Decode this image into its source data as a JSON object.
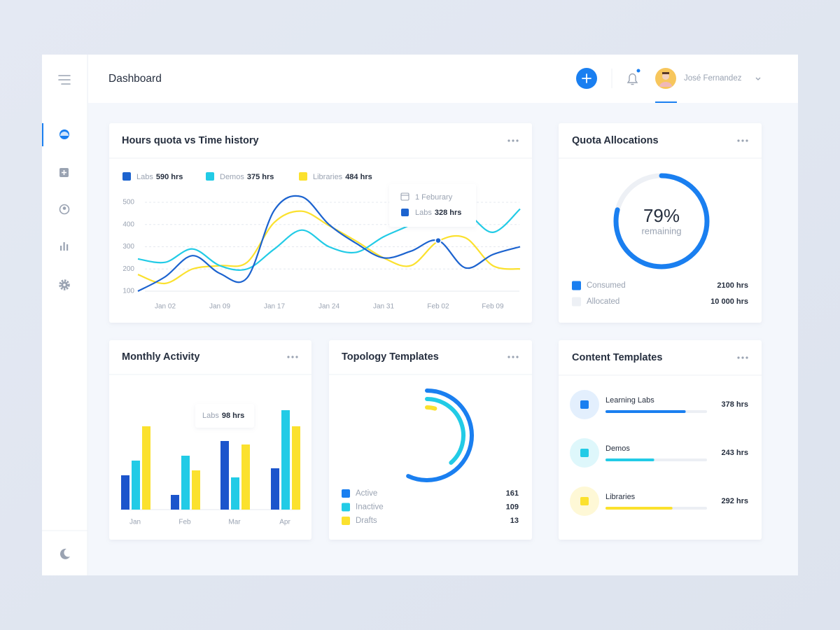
{
  "header": {
    "title": "Dashboard",
    "user": "José Fernandez"
  },
  "hours_card": {
    "title": "Hours quota vs Time history",
    "chart_data": {
      "type": "line",
      "categories": [
        null,
        "Jan 02",
        null,
        "Jan 09",
        null,
        "Jan 17",
        null,
        "Jan 24",
        null,
        "Jan 31",
        null,
        "Feb 02",
        null,
        "Feb 09",
        null
      ],
      "series": [
        {
          "name": "Labs",
          "total": "590 hrs",
          "color": "#1c63cf",
          "values": [
            100,
            165,
            260,
            180,
            160,
            465,
            525,
            400,
            315,
            250,
            280,
            328,
            205,
            265,
            300
          ]
        },
        {
          "name": "Demos",
          "total": "375 hrs",
          "color": "#22cbe6",
          "values": [
            245,
            230,
            290,
            215,
            200,
            290,
            375,
            300,
            275,
            345,
            400,
            470,
            455,
            365,
            470
          ]
        },
        {
          "name": "Libraries",
          "total": "484 hrs",
          "color": "#fbe12e",
          "values": [
            175,
            135,
            200,
            215,
            230,
            410,
            460,
            395,
            325,
            250,
            215,
            325,
            340,
            215,
            200
          ]
        }
      ],
      "ylim": [
        100,
        500
      ],
      "yticks": [
        100,
        200,
        300,
        400,
        500
      ],
      "grid": true
    },
    "tooltip": {
      "date": "1 Feburary",
      "series": "Labs",
      "value": "328 hrs"
    }
  },
  "quota_card": {
    "title": "Quota Allocations",
    "chart_data": {
      "type": "gauge",
      "value": 79,
      "value_label": "79%",
      "caption": "remaining",
      "ylim": [
        0,
        100
      ],
      "color": "#1a7ff0",
      "track_color": "#edf0f5"
    },
    "legend": [
      {
        "name": "Consumed",
        "value": "2100 hrs",
        "color": "#1a7ff0"
      },
      {
        "name": "Allocated",
        "value": "10 000 hrs",
        "color": "#edf0f5"
      }
    ]
  },
  "monthly_card": {
    "title": "Monthly Activity",
    "chart_data": {
      "type": "bar",
      "categories": [
        "Jan",
        "Feb",
        "Mar",
        "Apr"
      ],
      "series": [
        {
          "color": "#1c55cc",
          "values": [
            49,
            21,
            98,
            59
          ]
        },
        {
          "color": "#22cbe6",
          "values": [
            70,
            77,
            46,
            142
          ]
        },
        {
          "color": "#fbe12e",
          "values": [
            119,
            56,
            93,
            119
          ]
        }
      ],
      "ylim": [
        0,
        150
      ]
    },
    "tooltip": {
      "series": "Labs",
      "value": "98 hrs"
    }
  },
  "topology_card": {
    "title": "Topology Templates",
    "chart_data": {
      "type": "radial_bar",
      "categories": [
        "Active",
        "Inactive",
        "Drafts"
      ],
      "values": [
        161,
        109,
        13
      ],
      "colors": [
        "#1a7ff0",
        "#22cbe6",
        "#fbe12e"
      ]
    }
  },
  "content_card": {
    "title": "Content Templates",
    "items": [
      {
        "name": "Learning Labs",
        "value": "378 hrs",
        "progress": 0.79,
        "color": "#1a7ff0",
        "icon_bg": "#e3effd"
      },
      {
        "name": "Demos",
        "value": "243 hrs",
        "progress": 0.48,
        "color": "#22cbe6",
        "icon_bg": "#def7fb"
      },
      {
        "name": "Libraries",
        "value": "292 hrs",
        "progress": 0.66,
        "color": "#fbe12e",
        "icon_bg": "#fef8d6"
      }
    ]
  }
}
